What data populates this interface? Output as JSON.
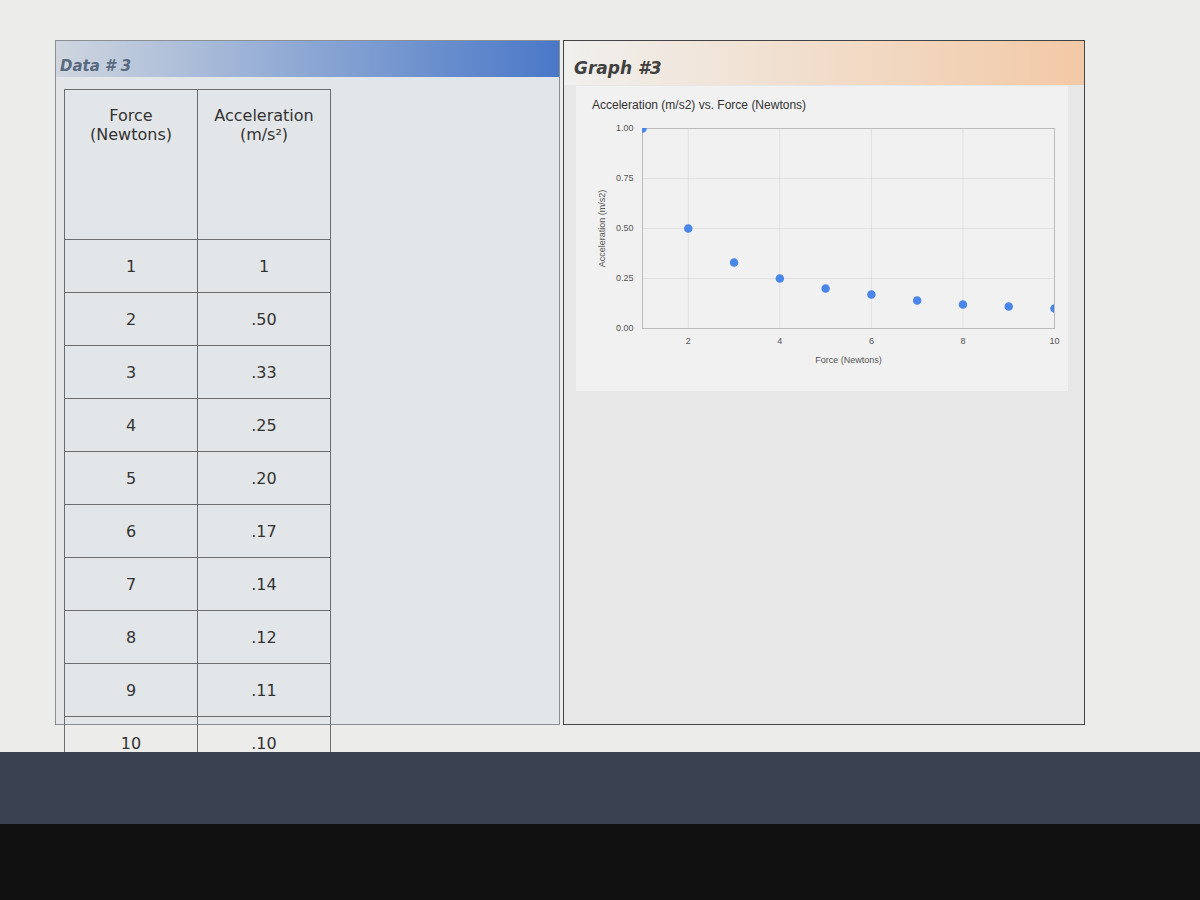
{
  "table": {
    "title": "Data # 3",
    "columns": [
      "Force (Newtons)",
      "Acceleration (m/s²)"
    ],
    "rows": [
      [
        "1",
        "1"
      ],
      [
        "2",
        ".50"
      ],
      [
        "3",
        ".33"
      ],
      [
        "4",
        ".25"
      ],
      [
        "5",
        ".20"
      ],
      [
        "6",
        ".17"
      ],
      [
        "7",
        ".14"
      ],
      [
        "8",
        ".12"
      ],
      [
        "9",
        ".11"
      ],
      [
        "10",
        ".10"
      ]
    ]
  },
  "graph_title": "Graph #3",
  "chart_data": {
    "type": "scatter",
    "title": "Acceleration (m/s2) vs. Force (Newtons)",
    "x_label": "Force (Newtons)",
    "y_label": "Acceleration (m/s2)",
    "x": [
      1,
      2,
      3,
      4,
      5,
      6,
      7,
      8,
      9,
      10
    ],
    "values": [
      1,
      0.5,
      0.33,
      0.25,
      0.2,
      0.17,
      0.14,
      0.12,
      0.11,
      0.1
    ],
    "color": "#4a86e8",
    "marker": "circle",
    "xlim": [
      1,
      10
    ],
    "xticks": [
      2,
      4,
      6,
      8,
      10
    ],
    "ylim": [
      0,
      1
    ],
    "yticks": [
      {
        "value": 0,
        "label": "0.00"
      },
      {
        "value": 0.25,
        "label": "0.25"
      },
      {
        "value": 0.5,
        "label": "0.50"
      },
      {
        "value": 0.75,
        "label": "0.75"
      },
      {
        "value": 1,
        "label": "1.00"
      }
    ],
    "grid": true
  }
}
